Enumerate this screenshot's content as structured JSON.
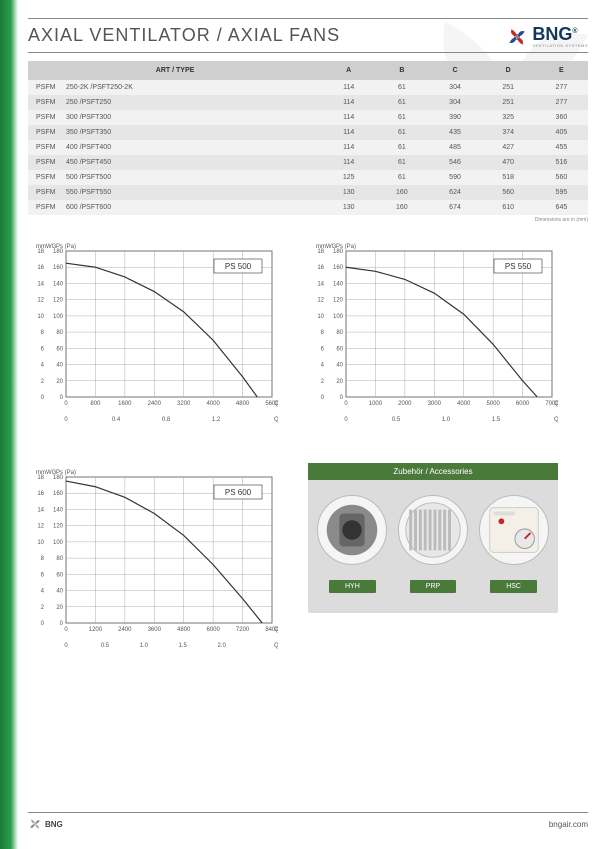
{
  "page": {
    "title": "AXIAL VENTILATOR / AXIAL FANS",
    "brand": "BNG",
    "brand_sub": "VENTILATION SYSTEMS",
    "brand_colors": {
      "blue": "#2a4d8f",
      "red": "#c62828",
      "navy": "#16365c"
    },
    "dim_note": "Dimensions are in (mm)",
    "footer_url": "bngair.com"
  },
  "sidebar": {
    "gradient_from": "#1a7a3a",
    "gradient_mid": "#2aa04a",
    "gradient_to": "#ffffff"
  },
  "table": {
    "headers": [
      "ART / TYPE",
      "A",
      "B",
      "C",
      "D",
      "E"
    ],
    "row_prefix": "PSFM",
    "rows": [
      {
        "type": "250-2K /PSFT250-2K",
        "A": 114,
        "B": 61,
        "C": 304,
        "D": 251,
        "E": 277
      },
      {
        "type": "250 /PSFT250",
        "A": 114,
        "B": 61,
        "C": 304,
        "D": 251,
        "E": 277
      },
      {
        "type": "300 /PSFT300",
        "A": 114,
        "B": 61,
        "C": 390,
        "D": 325,
        "E": 360
      },
      {
        "type": "350 /PSFT350",
        "A": 114,
        "B": 61,
        "C": 435,
        "D": 374,
        "E": 405
      },
      {
        "type": "400 /PSFT400",
        "A": 114,
        "B": 61,
        "C": 485,
        "D": 427,
        "E": 455
      },
      {
        "type": "450 /PSFT450",
        "A": 114,
        "B": 61,
        "C": 546,
        "D": 470,
        "E": 516
      },
      {
        "type": "500 /PSFT500",
        "A": 125,
        "B": 61,
        "C": 590,
        "D": 518,
        "E": 560
      },
      {
        "type": "550 /PSFT550",
        "A": 130,
        "B": 160,
        "C": 624,
        "D": 560,
        "E": 595
      },
      {
        "type": "600 /PSFT600",
        "A": 130,
        "B": 160,
        "C": 674,
        "D": 610,
        "E": 645
      }
    ],
    "header_bg": "#cfcfcf",
    "row_bg_alt": "#e6e6e6",
    "row_bg_norm": "#f2f2f2"
  },
  "charts": [
    {
      "label": "PS 500",
      "y_axis_left": {
        "label": "mmWG",
        "min": 0,
        "max": 18,
        "ticks": [
          0,
          2,
          4,
          6,
          8,
          10,
          12,
          14,
          16,
          18
        ]
      },
      "y_axis_right": {
        "label": "Ps (Pa)",
        "min": 0,
        "max": 180,
        "ticks": [
          0,
          20,
          40,
          60,
          80,
          100,
          120,
          140,
          160,
          180
        ]
      },
      "x_axis_top": {
        "label": "Q (m³/h)",
        "min": 0,
        "max": 5600,
        "ticks": [
          0,
          800,
          1600,
          2400,
          3200,
          4000,
          4800,
          5600
        ]
      },
      "x_axis_bottom": {
        "label": "Q (m³/s)",
        "min": 0,
        "max": 1.6,
        "ticks": [
          "0",
          "0.4",
          "0.8",
          "1.2"
        ]
      },
      "curve": [
        [
          0,
          165
        ],
        [
          800,
          160
        ],
        [
          1600,
          148
        ],
        [
          2400,
          130
        ],
        [
          3200,
          105
        ],
        [
          4000,
          70
        ],
        [
          4800,
          25
        ],
        [
          5200,
          0
        ]
      ],
      "line_color": "#333333",
      "grid_color": "#999999",
      "bg": "#ffffff",
      "font_size": 6
    },
    {
      "label": "PS 550",
      "y_axis_left": {
        "label": "mmWG",
        "min": 0,
        "max": 18,
        "ticks": [
          0,
          2,
          4,
          6,
          8,
          10,
          12,
          14,
          16,
          18
        ]
      },
      "y_axis_right": {
        "label": "Ps (Pa)",
        "min": 0,
        "max": 180,
        "ticks": [
          0,
          20,
          40,
          60,
          80,
          100,
          120,
          140,
          160,
          180
        ]
      },
      "x_axis_top": {
        "label": "Q (m³/h)",
        "min": 0,
        "max": 7000,
        "ticks": [
          0,
          1000,
          2000,
          3000,
          4000,
          5000,
          6000,
          7000
        ]
      },
      "x_axis_bottom": {
        "label": "Q (m³/s)",
        "min": 0,
        "max": 2.0,
        "ticks": [
          "0",
          "0.5",
          "1.0",
          "1.5"
        ]
      },
      "curve": [
        [
          0,
          160
        ],
        [
          1000,
          155
        ],
        [
          2000,
          145
        ],
        [
          3000,
          128
        ],
        [
          4000,
          102
        ],
        [
          5000,
          65
        ],
        [
          6000,
          20
        ],
        [
          6500,
          0
        ]
      ],
      "line_color": "#333333",
      "grid_color": "#999999",
      "bg": "#ffffff",
      "font_size": 6
    },
    {
      "label": "PS 600",
      "y_axis_left": {
        "label": "mmWG",
        "min": 0,
        "max": 18,
        "ticks": [
          0,
          2,
          4,
          6,
          8,
          10,
          12,
          14,
          16,
          18
        ]
      },
      "y_axis_right": {
        "label": "Ps (Pa)",
        "min": 0,
        "max": 180,
        "ticks": [
          0,
          20,
          40,
          60,
          80,
          100,
          120,
          140,
          160,
          180
        ]
      },
      "x_axis_top": {
        "label": "Q (m³/h)",
        "min": 0,
        "max": 8400,
        "ticks": [
          0,
          1200,
          2400,
          3600,
          4800,
          6000,
          7200,
          8400
        ]
      },
      "x_axis_bottom": {
        "label": "Q (m³/s)",
        "min": 0,
        "max": 2.4,
        "ticks": [
          "0",
          "0.5",
          "1.0",
          "1.5",
          "2.0"
        ]
      },
      "curve": [
        [
          0,
          175
        ],
        [
          1200,
          168
        ],
        [
          2400,
          155
        ],
        [
          3600,
          135
        ],
        [
          4800,
          108
        ],
        [
          6000,
          72
        ],
        [
          7200,
          30
        ],
        [
          8000,
          0
        ]
      ],
      "line_color": "#333333",
      "grid_color": "#999999",
      "bg": "#ffffff",
      "font_size": 6
    }
  ],
  "accessories": {
    "title": "Zubehör / Accessories",
    "bg": "#dcdcdc",
    "bar_color": "#4a7a3a",
    "items": [
      {
        "code": "HYH"
      },
      {
        "code": "PRP"
      },
      {
        "code": "HSC"
      }
    ]
  }
}
